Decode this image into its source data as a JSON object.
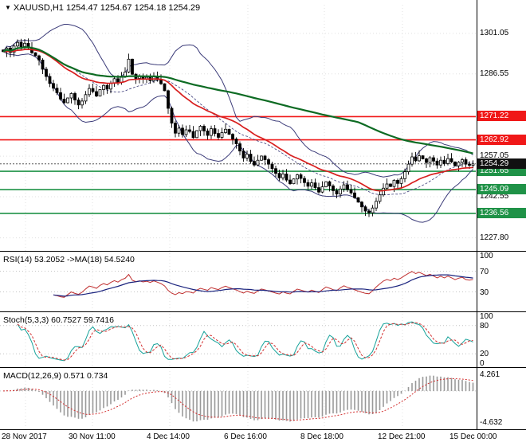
{
  "title": {
    "icon": "▼",
    "text": "XAUUSD,H1 1254.47 1254.67 1254.18 1254.29"
  },
  "colors": {
    "level_red": "#f01818",
    "level_green": "#1f9247",
    "current_badge": "#111111",
    "ma_red": "#d81f1f",
    "ma_green": "#0d6b23",
    "bollinger": "#3a3a78",
    "rsi_line": "#c03030",
    "rsi_ma": "#1a237e",
    "stoch_k": "#18a39b",
    "stoch_d": "#d33030",
    "macd_hist": "#999999",
    "macd_signal": "#d33030",
    "candle": "#000000",
    "grid": "#e0e0e0"
  },
  "chart_data": {
    "type": "candlestick",
    "symbol": "XAUUSD",
    "timeframe": "H1",
    "ohlc_display": {
      "open": 1254.47,
      "high": 1254.67,
      "low": 1254.18,
      "close": 1254.29
    },
    "x_labels": [
      "28 Nov 2017",
      "30 Nov 11:00",
      "4 Dec 14:00",
      "6 Dec 16:00",
      "8 Dec 18:00",
      "12 Dec 21:00",
      "15 Dec 00:00"
    ],
    "main": {
      "y_ticks": [
        1301.05,
        1286.55,
        1257.05,
        1242.55,
        1227.8
      ],
      "price_range": [
        1224,
        1309
      ],
      "levels": [
        {
          "value": 1271.22,
          "color": "red"
        },
        {
          "value": 1262.92,
          "color": "red"
        },
        {
          "value": 1251.65,
          "color": "green"
        },
        {
          "value": 1245.09,
          "color": "green"
        },
        {
          "value": 1236.56,
          "color": "green"
        },
        {
          "value": 1254.29,
          "color": "black",
          "current": true
        }
      ],
      "overlays": [
        {
          "name": "ma-red",
          "color_key": "ma_red",
          "period": 25
        },
        {
          "name": "ma-green",
          "color_key": "ma_green",
          "period": 100
        },
        {
          "name": "bollinger",
          "period": 20,
          "deviation": 2
        }
      ],
      "closes": [
        1294.5,
        1295.8,
        1294.2,
        1296.5,
        1297.8,
        1296.3,
        1297.5,
        1295.9,
        1294.1,
        1293.0,
        1291.5,
        1288.2,
        1285.6,
        1283.1,
        1281.4,
        1279.8,
        1277.5,
        1276.2,
        1277.9,
        1279.5,
        1277.2,
        1275.4,
        1276.8,
        1279.1,
        1281.3,
        1280.2,
        1278.6,
        1280.9,
        1282.4,
        1281.1,
        1283.2,
        1284.8,
        1283.5,
        1285.7,
        1287.2,
        1291.8,
        1286.4,
        1284.9,
        1285.8,
        1284.6,
        1285.3,
        1284.1,
        1285.6,
        1284.4,
        1283.0,
        1280.5,
        1274.2,
        1268.9,
        1265.3,
        1267.1,
        1264.8,
        1266.5,
        1265.9,
        1263.7,
        1266.2,
        1267.8,
        1266.1,
        1264.5,
        1266.9,
        1265.2,
        1263.8,
        1265.5,
        1266.7,
        1264.9,
        1263.2,
        1261.5,
        1258.9,
        1256.4,
        1257.8,
        1255.2,
        1253.9,
        1255.6,
        1257.1,
        1255.8,
        1254.2,
        1252.6,
        1250.9,
        1249.3,
        1250.7,
        1248.5,
        1247.2,
        1248.9,
        1250.4,
        1249.1,
        1247.6,
        1246.3,
        1247.5,
        1245.8,
        1244.2,
        1246.1,
        1247.9,
        1246.4,
        1244.7,
        1243.5,
        1245.3,
        1246.8,
        1245.1,
        1243.9,
        1242.2,
        1240.6,
        1238.9,
        1237.4,
        1236.8,
        1238.5,
        1240.9,
        1243.2,
        1245.6,
        1247.1,
        1246.2,
        1248.4,
        1247.3,
        1249.0,
        1251.5,
        1254.2,
        1256.8,
        1255.4,
        1257.2,
        1256.1,
        1254.8,
        1256.5,
        1255.3,
        1253.9,
        1255.6,
        1254.4,
        1256.2,
        1255.0,
        1253.6,
        1254.9,
        1255.8,
        1254.2,
        1253.8,
        1254.29
      ]
    },
    "panes": [
      {
        "name": "rsi",
        "label": "RSI(14) 53.2052  ->MA(18) 54.5240",
        "ticks": [
          100,
          70,
          30
        ],
        "level_lines": [
          70,
          30
        ],
        "range": [
          0,
          100
        ],
        "current_values": [
          53.2052,
          54.524
        ]
      },
      {
        "name": "stoch",
        "label": "Stoch(5,3,3) 60.7527 59.7416",
        "ticks": [
          100,
          80,
          20,
          0
        ],
        "level_lines": [
          80,
          20
        ],
        "range": [
          0,
          100
        ],
        "current_values": [
          60.7527,
          59.7416
        ]
      },
      {
        "name": "macd",
        "label": "MACD(12,26,9) 0.571 0.734",
        "ticks": [
          "4.261",
          "-4.632"
        ],
        "current_values": [
          0.571,
          0.734
        ]
      }
    ]
  }
}
